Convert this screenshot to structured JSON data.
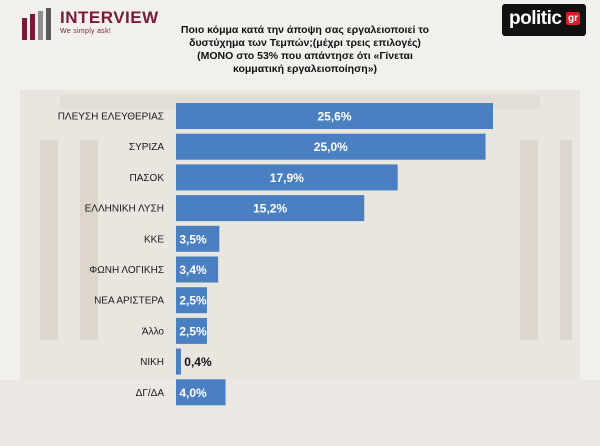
{
  "brand": {
    "name": "INTERVIEW",
    "tagline": "We simply ask!",
    "publisher": "politic",
    "publisher_suffix": "gr"
  },
  "chart_data": {
    "type": "bar",
    "orientation": "horizontal",
    "title_lines": [
      "Ποιο κόμμα κατά την άποψη σας εργαλειοποιεί το",
      "δυστύχημα των Τεμπών;(μέχρι τρεις επιλογές)",
      "(ΜΟΝΟ στο 53% που απάντησε ότι «Γίνεται",
      "κομματική εργαλειοποίηση»)"
    ],
    "categories": [
      "ΠΛΕΥΣΗ ΕΛΕΥΘΕΡΙΑΣ",
      "ΣΥΡΙΖΑ",
      "ΠΑΣΟΚ",
      "ΕΛΛΗΝΙΚΗ ΛΥΣΗ",
      "ΚΚΕ",
      "ΦΩΝΗ ΛΟΓΙΚΗΣ",
      "ΝΕΑ ΑΡΙΣΤΕΡΑ",
      "Άλλο",
      "ΝΙΚΗ",
      "ΔΓ/ΔΑ"
    ],
    "values": [
      25.6,
      25.0,
      17.9,
      15.2,
      3.5,
      3.4,
      2.5,
      2.5,
      0.4,
      4.0
    ],
    "value_labels": [
      "25,6%",
      "25,0%",
      "17,9%",
      "15,2%",
      "3,5%",
      "3,4%",
      "2,5%",
      "2,5%",
      "0,4%",
      "4,0%"
    ],
    "xlim": [
      0,
      25.6
    ],
    "grid": false,
    "bar_color": "#4a7fc1",
    "label_color": "#ffffff",
    "outside_label_color": "#111111"
  }
}
